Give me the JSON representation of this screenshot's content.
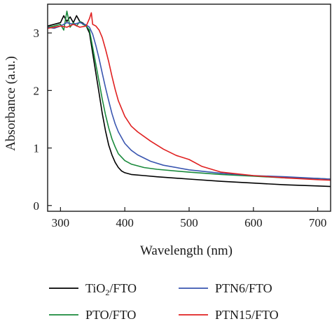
{
  "chart_data": {
    "type": "line",
    "xlabel": "Wavelength (nm)",
    "ylabel": "Absorbance (a.u.)",
    "xlim": [
      280,
      720
    ],
    "ylim": [
      -0.1,
      3.5
    ],
    "x_ticks": [
      "300",
      "400",
      "500",
      "600",
      "700"
    ],
    "y_ticks": [
      "0",
      "1",
      "2",
      "3"
    ],
    "legend_placement": "bottom",
    "grid": false,
    "series": [
      {
        "name": "TiO2/FTO",
        "legend": {
          "main": "TiO",
          "sub": "2",
          "rest": "/FTO"
        },
        "color": "#000000",
        "points": [
          [
            280,
            3.12
          ],
          [
            290,
            3.15
          ],
          [
            300,
            3.18
          ],
          [
            305,
            3.3
          ],
          [
            310,
            3.2
          ],
          [
            315,
            3.28
          ],
          [
            320,
            3.18
          ],
          [
            325,
            3.3
          ],
          [
            330,
            3.2
          ],
          [
            335,
            3.17
          ],
          [
            340,
            3.12
          ],
          [
            345,
            3.0
          ],
          [
            350,
            2.65
          ],
          [
            355,
            2.3
          ],
          [
            360,
            1.95
          ],
          [
            365,
            1.6
          ],
          [
            370,
            1.3
          ],
          [
            375,
            1.05
          ],
          [
            380,
            0.88
          ],
          [
            385,
            0.75
          ],
          [
            390,
            0.66
          ],
          [
            395,
            0.6
          ],
          [
            400,
            0.57
          ],
          [
            410,
            0.54
          ],
          [
            430,
            0.52
          ],
          [
            450,
            0.5
          ],
          [
            500,
            0.46
          ],
          [
            550,
            0.42
          ],
          [
            600,
            0.39
          ],
          [
            650,
            0.36
          ],
          [
            700,
            0.34
          ],
          [
            720,
            0.33
          ]
        ]
      },
      {
        "name": "PTO/FTO",
        "legend": {
          "main": "PTO/FTO",
          "sub": "",
          "rest": ""
        },
        "color": "#1a8a3c",
        "points": [
          [
            280,
            3.1
          ],
          [
            290,
            3.12
          ],
          [
            300,
            3.15
          ],
          [
            305,
            3.05
          ],
          [
            310,
            3.38
          ],
          [
            315,
            3.1
          ],
          [
            320,
            3.18
          ],
          [
            325,
            3.12
          ],
          [
            330,
            3.2
          ],
          [
            335,
            3.15
          ],
          [
            340,
            3.12
          ],
          [
            345,
            3.05
          ],
          [
            350,
            2.75
          ],
          [
            355,
            2.45
          ],
          [
            360,
            2.15
          ],
          [
            365,
            1.85
          ],
          [
            370,
            1.58
          ],
          [
            375,
            1.35
          ],
          [
            380,
            1.16
          ],
          [
            385,
            1.02
          ],
          [
            390,
            0.9
          ],
          [
            400,
            0.78
          ],
          [
            410,
            0.72
          ],
          [
            430,
            0.66
          ],
          [
            450,
            0.63
          ],
          [
            500,
            0.58
          ],
          [
            550,
            0.54
          ],
          [
            600,
            0.51
          ],
          [
            650,
            0.48
          ],
          [
            700,
            0.47
          ],
          [
            720,
            0.46
          ]
        ]
      },
      {
        "name": "PTN6/FTO",
        "legend": {
          "main": "PTN6/FTO",
          "sub": "",
          "rest": ""
        },
        "color": "#3a56b0",
        "points": [
          [
            280,
            3.1
          ],
          [
            290,
            3.08
          ],
          [
            300,
            3.12
          ],
          [
            310,
            3.18
          ],
          [
            320,
            3.15
          ],
          [
            330,
            3.18
          ],
          [
            340,
            3.14
          ],
          [
            345,
            3.1
          ],
          [
            350,
            2.98
          ],
          [
            355,
            2.78
          ],
          [
            360,
            2.55
          ],
          [
            365,
            2.3
          ],
          [
            370,
            2.05
          ],
          [
            375,
            1.82
          ],
          [
            380,
            1.6
          ],
          [
            385,
            1.42
          ],
          [
            390,
            1.28
          ],
          [
            400,
            1.08
          ],
          [
            410,
            0.96
          ],
          [
            420,
            0.88
          ],
          [
            440,
            0.77
          ],
          [
            460,
            0.7
          ],
          [
            500,
            0.62
          ],
          [
            550,
            0.56
          ],
          [
            600,
            0.52
          ],
          [
            650,
            0.5
          ],
          [
            700,
            0.47
          ],
          [
            720,
            0.46
          ]
        ]
      },
      {
        "name": "PTN15/FTO",
        "legend": {
          "main": "PTN15/FTO",
          "sub": "",
          "rest": ""
        },
        "color": "#e02020",
        "points": [
          [
            280,
            3.08
          ],
          [
            290,
            3.1
          ],
          [
            300,
            3.12
          ],
          [
            310,
            3.1
          ],
          [
            320,
            3.15
          ],
          [
            330,
            3.1
          ],
          [
            340,
            3.12
          ],
          [
            345,
            3.25
          ],
          [
            348,
            3.35
          ],
          [
            350,
            3.15
          ],
          [
            355,
            3.12
          ],
          [
            360,
            3.05
          ],
          [
            365,
            2.92
          ],
          [
            370,
            2.72
          ],
          [
            375,
            2.5
          ],
          [
            380,
            2.25
          ],
          [
            385,
            2.02
          ],
          [
            390,
            1.82
          ],
          [
            400,
            1.55
          ],
          [
            410,
            1.38
          ],
          [
            420,
            1.28
          ],
          [
            440,
            1.12
          ],
          [
            460,
            0.98
          ],
          [
            480,
            0.87
          ],
          [
            500,
            0.8
          ],
          [
            520,
            0.68
          ],
          [
            550,
            0.58
          ],
          [
            600,
            0.52
          ],
          [
            650,
            0.48
          ],
          [
            700,
            0.45
          ],
          [
            720,
            0.44
          ]
        ]
      }
    ]
  }
}
